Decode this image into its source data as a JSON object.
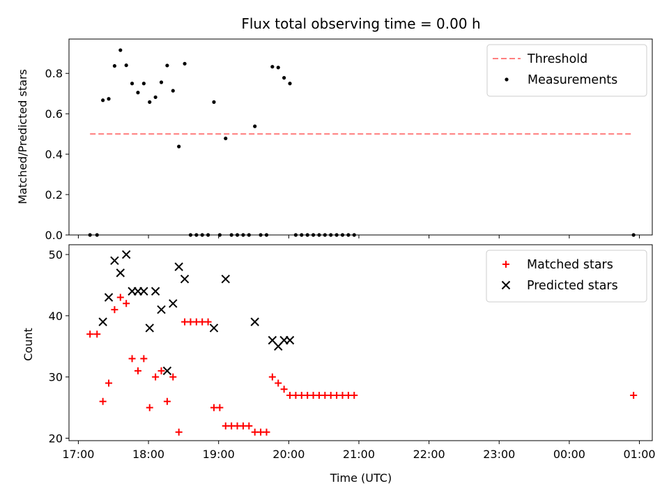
{
  "chart_data": [
    {
      "type": "scatter",
      "title": "Flux total observing time = 0.00 h",
      "xlabel": "",
      "ylabel": "Matched/Predicted stars",
      "xlim": [
        "16:52",
        "01:11"
      ],
      "ylim": [
        0,
        0.97
      ],
      "y_ticks": [
        0.0,
        0.2,
        0.4,
        0.6,
        0.8
      ],
      "y_tick_labels": [
        "0.0",
        "0.2",
        "0.4",
        "0.6",
        "0.8"
      ],
      "x_ticks": [
        "17:00",
        "18:00",
        "19:00",
        "20:00",
        "21:00",
        "22:00",
        "23:00",
        "00:00",
        "01:00"
      ],
      "legend_position": "top-right",
      "grid": false,
      "threshold": {
        "name": "Threshold",
        "y": 0.5,
        "x_range": [
          "17:10",
          "00:55"
        ],
        "color": "#ff7f7f",
        "style": "dashed"
      },
      "series": [
        {
          "name": "Measurements",
          "color": "#000000",
          "marker": "dot",
          "points": [
            [
              "17:10",
              0.0
            ],
            [
              "17:16",
              0.0
            ],
            [
              "17:21",
              0.667
            ],
            [
              "17:26",
              0.674
            ],
            [
              "17:31",
              0.837
            ],
            [
              "17:36",
              0.915
            ],
            [
              "17:41",
              0.84
            ],
            [
              "17:46",
              0.75
            ],
            [
              "17:51",
              0.705
            ],
            [
              "17:56",
              0.75
            ],
            [
              "18:01",
              0.658
            ],
            [
              "18:06",
              0.682
            ],
            [
              "18:11",
              0.756
            ],
            [
              "18:16",
              0.839
            ],
            [
              "18:21",
              0.714
            ],
            [
              "18:26",
              0.438
            ],
            [
              "18:31",
              0.848
            ],
            [
              "18:36",
              0.0
            ],
            [
              "18:41",
              0.0
            ],
            [
              "18:46",
              0.0
            ],
            [
              "18:51",
              0.0
            ],
            [
              "18:56",
              0.658
            ],
            [
              "19:01",
              0.0
            ],
            [
              "19:06",
              0.478
            ],
            [
              "19:11",
              0.0
            ],
            [
              "19:16",
              0.0
            ],
            [
              "19:21",
              0.0
            ],
            [
              "19:26",
              0.0
            ],
            [
              "19:31",
              0.538
            ],
            [
              "19:36",
              0.0
            ],
            [
              "19:41",
              0.0
            ],
            [
              "19:46",
              0.833
            ],
            [
              "19:51",
              0.829
            ],
            [
              "19:56",
              0.778
            ],
            [
              "20:01",
              0.75
            ],
            [
              "20:06",
              0.0
            ],
            [
              "20:11",
              0.0
            ],
            [
              "20:16",
              0.0
            ],
            [
              "20:21",
              0.0
            ],
            [
              "20:26",
              0.0
            ],
            [
              "20:31",
              0.0
            ],
            [
              "20:36",
              0.0
            ],
            [
              "20:41",
              0.0
            ],
            [
              "20:46",
              0.0
            ],
            [
              "20:51",
              0.0
            ],
            [
              "20:56",
              0.0
            ],
            [
              "00:55",
              0.0
            ]
          ]
        }
      ]
    },
    {
      "type": "scatter",
      "title": "",
      "xlabel": "Time (UTC)",
      "ylabel": "Count",
      "xlim": [
        "16:52",
        "01:11"
      ],
      "ylim": [
        19.6,
        51.6
      ],
      "y_ticks": [
        20,
        30,
        40,
        50
      ],
      "y_tick_labels": [
        "20",
        "30",
        "40",
        "50"
      ],
      "x_ticks": [
        "17:00",
        "18:00",
        "19:00",
        "20:00",
        "21:00",
        "22:00",
        "23:00",
        "00:00",
        "01:00"
      ],
      "x_tick_labels": [
        "17:00",
        "18:00",
        "19:00",
        "20:00",
        "21:00",
        "22:00",
        "23:00",
        "00:00",
        "01:00"
      ],
      "legend_position": "top-right",
      "grid": false,
      "series": [
        {
          "name": "Matched stars",
          "color": "#ff0000",
          "marker": "plus",
          "points": [
            [
              "17:10",
              37
            ],
            [
              "17:16",
              37
            ],
            [
              "17:21",
              26
            ],
            [
              "17:26",
              29
            ],
            [
              "17:31",
              41
            ],
            [
              "17:36",
              43
            ],
            [
              "17:41",
              42
            ],
            [
              "17:46",
              33
            ],
            [
              "17:51",
              31
            ],
            [
              "17:56",
              33
            ],
            [
              "18:01",
              25
            ],
            [
              "18:06",
              30
            ],
            [
              "18:11",
              31
            ],
            [
              "18:16",
              26
            ],
            [
              "18:21",
              30
            ],
            [
              "18:26",
              21
            ],
            [
              "18:31",
              39
            ],
            [
              "18:36",
              39
            ],
            [
              "18:41",
              39
            ],
            [
              "18:46",
              39
            ],
            [
              "18:51",
              39
            ],
            [
              "18:56",
              25
            ],
            [
              "19:01",
              25
            ],
            [
              "19:06",
              22
            ],
            [
              "19:11",
              22
            ],
            [
              "19:16",
              22
            ],
            [
              "19:21",
              22
            ],
            [
              "19:26",
              22
            ],
            [
              "19:31",
              21
            ],
            [
              "19:36",
              21
            ],
            [
              "19:41",
              21
            ],
            [
              "19:46",
              30
            ],
            [
              "19:51",
              29
            ],
            [
              "19:56",
              28
            ],
            [
              "20:01",
              27
            ],
            [
              "20:06",
              27
            ],
            [
              "20:11",
              27
            ],
            [
              "20:16",
              27
            ],
            [
              "20:21",
              27
            ],
            [
              "20:26",
              27
            ],
            [
              "20:31",
              27
            ],
            [
              "20:36",
              27
            ],
            [
              "20:41",
              27
            ],
            [
              "20:46",
              27
            ],
            [
              "20:51",
              27
            ],
            [
              "20:56",
              27
            ],
            [
              "00:55",
              27
            ]
          ]
        },
        {
          "name": "Predicted stars",
          "color": "#000000",
          "marker": "x",
          "points": [
            [
              "17:21",
              39
            ],
            [
              "17:26",
              43
            ],
            [
              "17:31",
              49
            ],
            [
              "17:36",
              47
            ],
            [
              "17:41",
              50
            ],
            [
              "17:46",
              44
            ],
            [
              "17:51",
              44
            ],
            [
              "17:56",
              44
            ],
            [
              "18:01",
              38
            ],
            [
              "18:06",
              44
            ],
            [
              "18:11",
              41
            ],
            [
              "18:16",
              31
            ],
            [
              "18:21",
              42
            ],
            [
              "18:26",
              48
            ],
            [
              "18:31",
              46
            ],
            [
              "18:56",
              38
            ],
            [
              "19:06",
              46
            ],
            [
              "19:31",
              39
            ],
            [
              "19:46",
              36
            ],
            [
              "19:51",
              35
            ],
            [
              "19:56",
              36
            ],
            [
              "20:01",
              36
            ]
          ]
        }
      ]
    }
  ]
}
